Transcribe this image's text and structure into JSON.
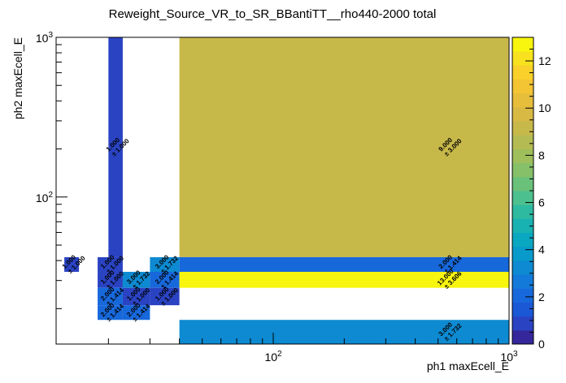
{
  "chart_data": {
    "type": "heatmap",
    "title": "Reweight_Source_VR_to_SR_BBantiTT__rho440-2000 total",
    "xlabel": "ph1 maxEcell_E",
    "ylabel": "ph2 maxEcell_E",
    "x_scale": "log",
    "y_scale": "log",
    "xlim": [
      12,
      1000
    ],
    "ylim": [
      12,
      1000
    ],
    "x_tick_labels": [
      "10^2",
      "10^3"
    ],
    "y_tick_labels": [
      "10^2",
      "10^3"
    ],
    "z_range": [
      0,
      13
    ],
    "z_ticks": [
      0,
      2,
      4,
      6,
      8,
      10,
      12
    ],
    "palette_colors": [
      "#35279b",
      "#2a43c3",
      "#1a58d6",
      "#1768db",
      "#137ad9",
      "#0d8ad1",
      "#089acb",
      "#0aa7c1",
      "#18b2b2",
      "#2dbaa1",
      "#4cc08e",
      "#6ac17a",
      "#86c069",
      "#9fbe5c",
      "#b4bb52",
      "#c7b84a",
      "#d8b943",
      "#e7bd3c",
      "#f3c433",
      "#f9d12a",
      "#f8e21f",
      "#f8f50f"
    ],
    "cells": [
      {
        "x": [
          20,
          23
        ],
        "y": [
          42,
          1000
        ],
        "value": 1.0,
        "label": "1.000",
        "error": "± 1.000"
      },
      {
        "x": [
          40,
          1000
        ],
        "y": [
          42,
          1000
        ],
        "value": 9.0,
        "label": "9.000",
        "error": "± 3.000"
      },
      {
        "x": [
          13,
          15
        ],
        "y": [
          34,
          42
        ],
        "value": 1.0,
        "label": "1.000",
        "error": "± 1.000"
      },
      {
        "x": [
          18,
          23
        ],
        "y": [
          34,
          42
        ],
        "value": 1.0,
        "label": "1.000",
        "error": "± 1.000"
      },
      {
        "x": [
          30,
          40
        ],
        "y": [
          34,
          42
        ],
        "value": 3.0,
        "label": "3.000",
        "error": "± 1.732"
      },
      {
        "x": [
          40,
          1000
        ],
        "y": [
          34,
          42
        ],
        "value": 2.0,
        "label": "2.000",
        "error": "± 1.414"
      },
      {
        "x": [
          18,
          23
        ],
        "y": [
          27,
          34
        ],
        "value": 1.0,
        "label": "1.000",
        "error": "± 1.000"
      },
      {
        "x": [
          23,
          30
        ],
        "y": [
          27,
          34
        ],
        "value": 3.0,
        "label": "3.000",
        "error": "± 1.732"
      },
      {
        "x": [
          30,
          40
        ],
        "y": [
          27,
          34
        ],
        "value": 2.0,
        "label": "2.000",
        "error": "± 1.414"
      },
      {
        "x": [
          40,
          1000
        ],
        "y": [
          27,
          34
        ],
        "value": 13.0,
        "label": "13.000",
        "error": "± 3.606"
      },
      {
        "x": [
          18,
          23
        ],
        "y": [
          21,
          27
        ],
        "value": 2.0,
        "label": "2.000",
        "error": "± 1.414"
      },
      {
        "x": [
          23,
          30
        ],
        "y": [
          21,
          27
        ],
        "value": 1.0,
        "label": "1.000",
        "error": "± 1.000"
      },
      {
        "x": [
          30,
          40
        ],
        "y": [
          21,
          27
        ],
        "value": 1.0,
        "label": "1.000",
        "error": "± 1.000"
      },
      {
        "x": [
          18,
          23
        ],
        "y": [
          17,
          21
        ],
        "value": 2.0,
        "label": "2.000",
        "error": "± 1.414"
      },
      {
        "x": [
          23,
          30
        ],
        "y": [
          17,
          21
        ],
        "value": 2.0,
        "label": "2.000",
        "error": "± 1.414"
      },
      {
        "x": [
          40,
          1000
        ],
        "y": [
          12,
          17
        ],
        "value": 3.0,
        "label": "3.000",
        "error": "± 1.732"
      }
    ]
  }
}
